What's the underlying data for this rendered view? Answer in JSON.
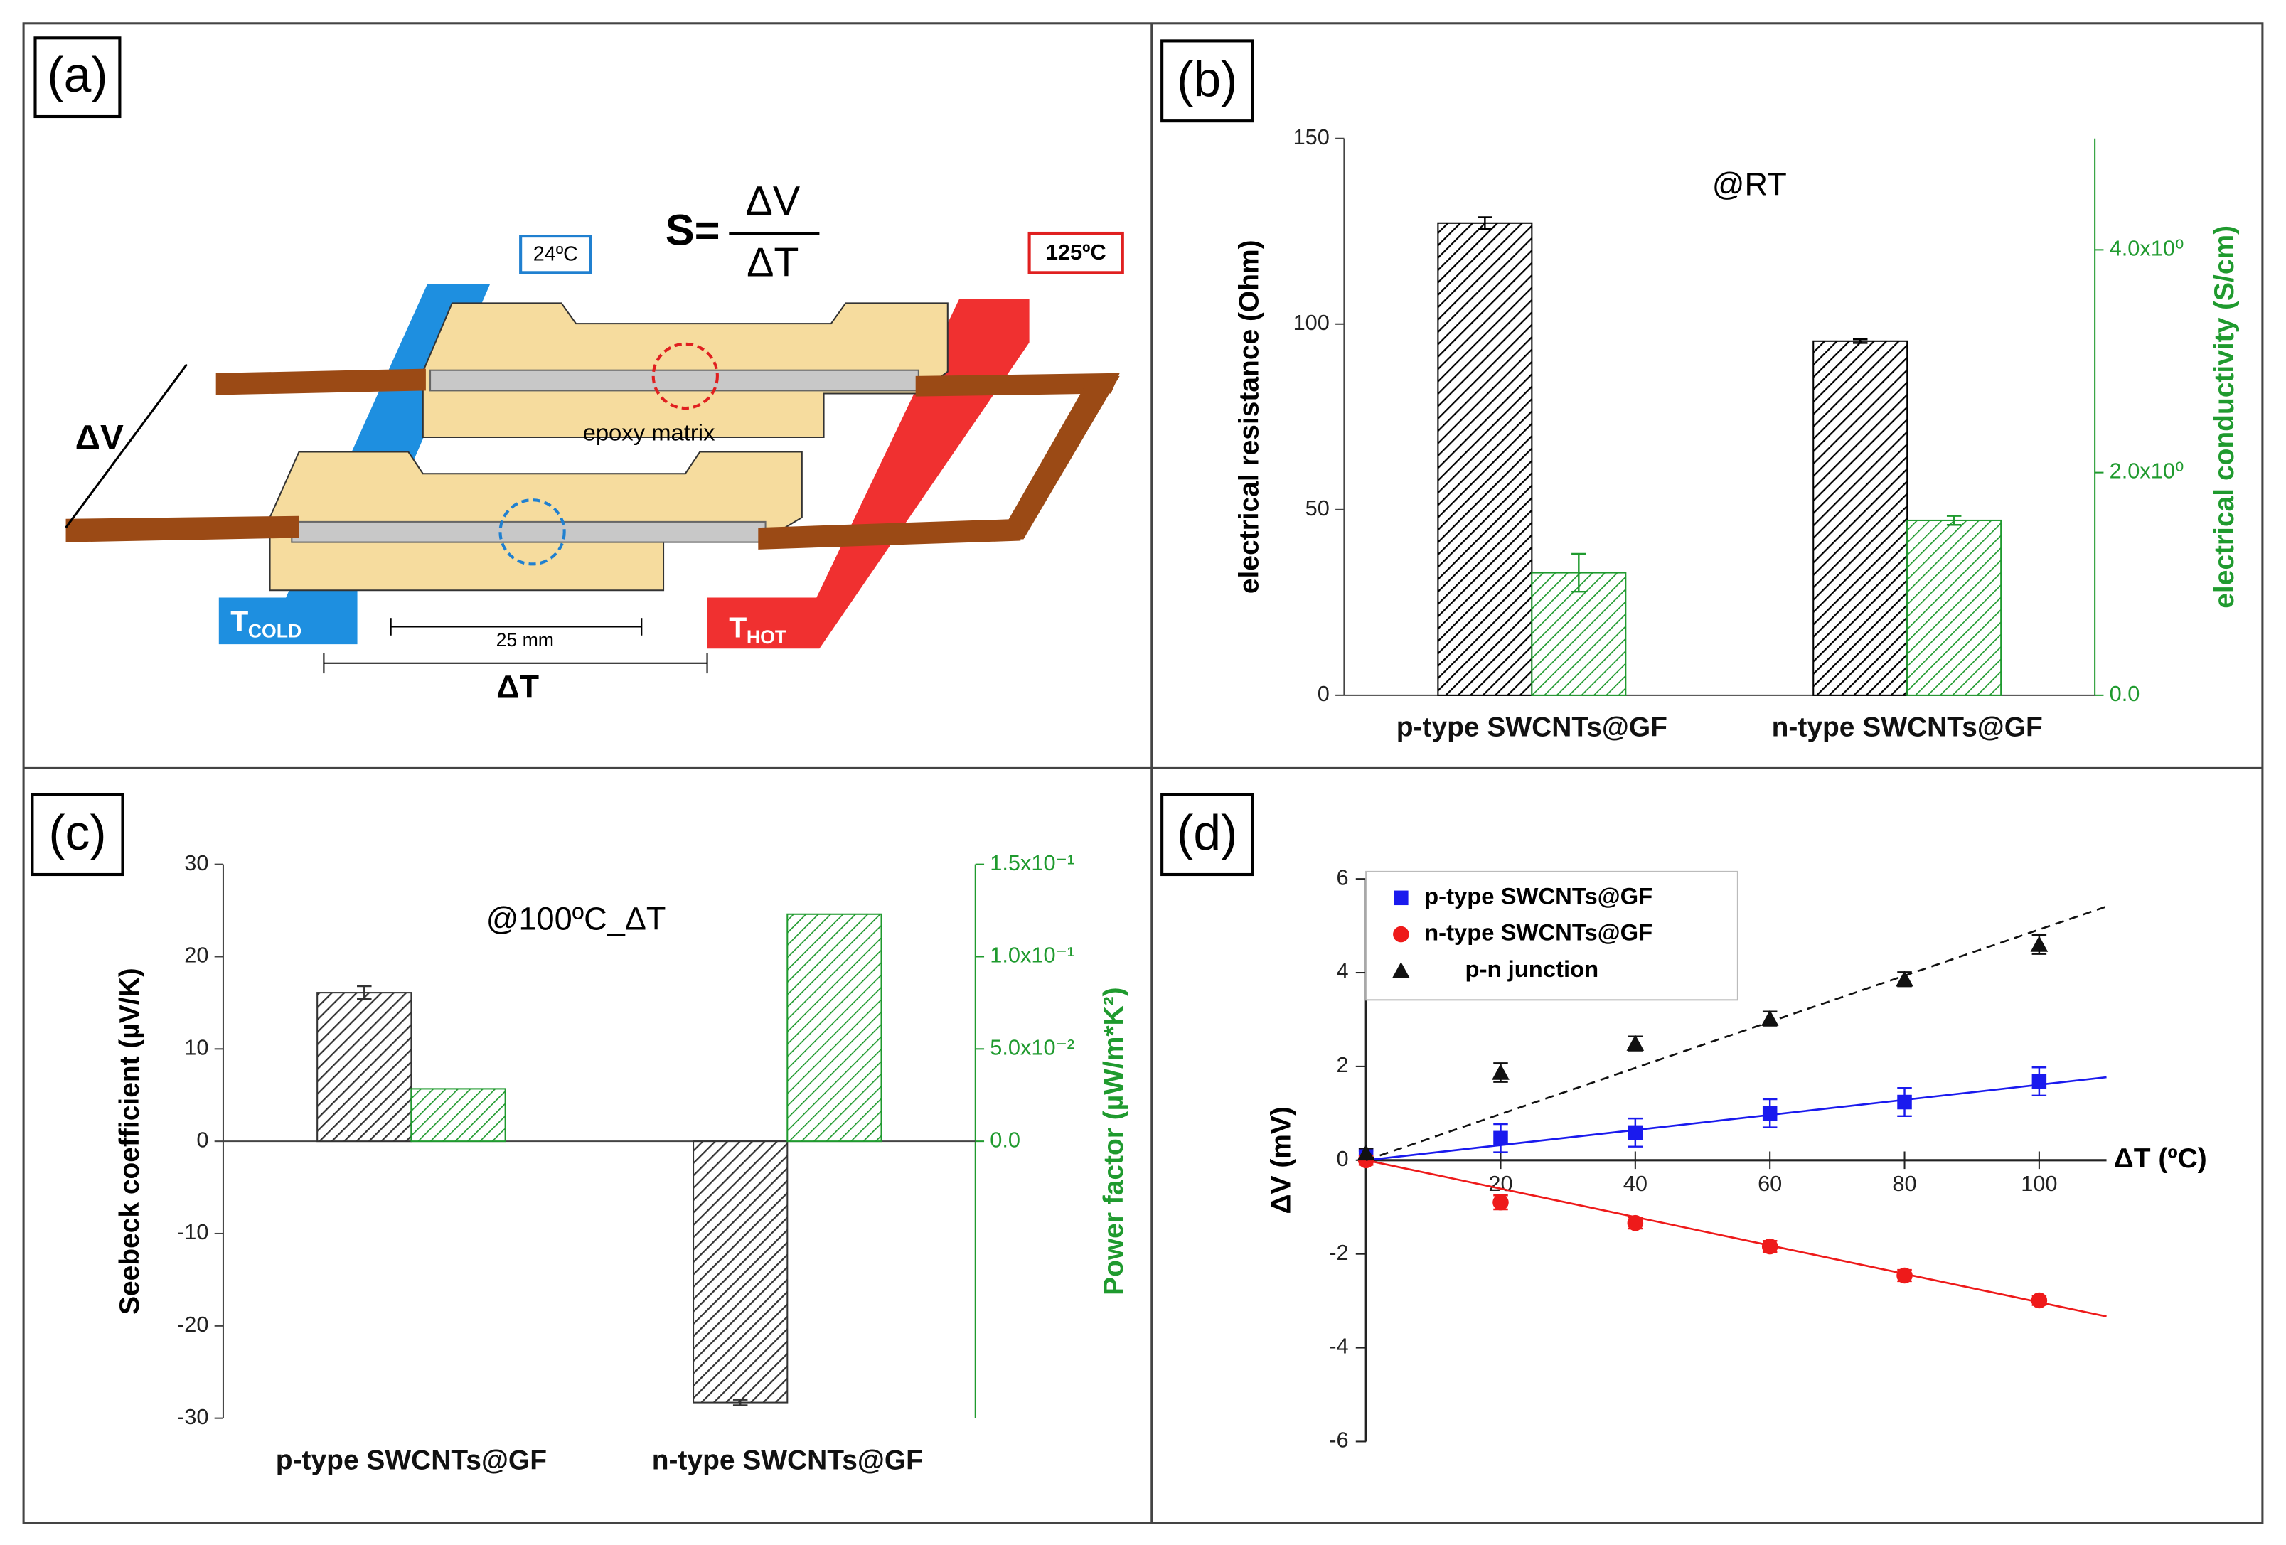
{
  "diagram": {
    "panel_label": "(a)",
    "formula": {
      "lhs": "S=",
      "numerator": "ΔV",
      "denominator": "ΔT"
    },
    "cold_temperature": "24ºC",
    "hot_temperature": "125ºC",
    "voltage_label": "ΔV",
    "matrix_label": "epoxy matrix",
    "cold_label": {
      "main": "T",
      "sub": "COLD"
    },
    "hot_label": {
      "main": "T",
      "sub": "HOT"
    },
    "length_label": "25 mm",
    "gradient_label": "ΔT"
  },
  "chart_data": [
    {
      "type": "bar",
      "panel_label": "(b)",
      "annotation": "@RT",
      "categories": [
        "p-type SWCNTs@GF",
        "n-type SWCNTs@GF"
      ],
      "series": [
        {
          "color": "#000000",
          "values": [
            127.2,
            95.4
          ],
          "errors": [
            1.6,
            0.5
          ]
        },
        {
          "color": "#1f9a2e",
          "axis": "y2",
          "values": [
            1.1,
            1.57
          ],
          "errors": [
            0.17,
            0.04
          ]
        }
      ],
      "ylabel": "electrical resistance (Ohm)",
      "y2label": "electrical conductivity (S/cm)",
      "ylim": [
        0,
        150
      ],
      "yticks": [
        0,
        50,
        100,
        150
      ],
      "y2lim": [
        0,
        5
      ],
      "y2ticks": [
        {
          "value": 0,
          "label": "0.0"
        },
        {
          "value": 2,
          "label": "2.0x10⁰"
        },
        {
          "value": 4,
          "label": "4.0x10⁰"
        }
      ],
      "y2color": "#1f9a2e"
    },
    {
      "type": "bar",
      "panel_label": "(c)",
      "annotation": "@100ºC_ΔT",
      "categories": [
        "p-type SWCNTs@GF",
        "n-type SWCNTs@GF"
      ],
      "series": [
        {
          "color": "#333333",
          "values": [
            16.1,
            -28.3
          ],
          "errors": [
            0.7,
            0.3
          ]
        },
        {
          "color": "#1f9a2e",
          "axis": "y2",
          "values": [
            0.0284,
            0.123
          ]
        }
      ],
      "ylabel": "Seebeck coefficient (µV/K)",
      "y2label": "Power factor (µW/m*K²)",
      "ylim": [
        -30,
        30
      ],
      "yticks": [
        -30,
        -20,
        -10,
        0,
        10,
        20,
        30
      ],
      "y2lim": [
        -0.15,
        0.15
      ],
      "y2ticks": [
        {
          "value": 0,
          "label": "0.0"
        },
        {
          "value": 0.05,
          "label": "5.0x10⁻²"
        },
        {
          "value": 0.1,
          "label": "1.0x10⁻¹"
        },
        {
          "value": 0.15,
          "label": "1.5x10⁻¹"
        }
      ],
      "y2color": "#1f9a2e"
    },
    {
      "type": "scatter",
      "panel_label": "(d)",
      "x": [
        0,
        20,
        40,
        60,
        80,
        100
      ],
      "series": [
        {
          "name": "p-type SWCNTs@GF",
          "color": "#1a1aee",
          "marker": "square",
          "values": [
            0.1,
            0.47,
            0.59,
            1.0,
            1.24,
            1.68
          ],
          "errors": [
            0.1,
            0.3,
            0.3,
            0.3,
            0.3,
            0.3
          ],
          "fit_slope": 0.0161
        },
        {
          "name": "n-type SWCNTs@GF",
          "color": "#ee1a1a",
          "marker": "circle",
          "values": [
            0,
            -0.9,
            -1.34,
            -1.84,
            -2.46,
            -2.99
          ],
          "errors": [
            0.1,
            0.15,
            0.12,
            0.12,
            0.12,
            0.1
          ],
          "fit_slope": -0.0303
        },
        {
          "name": "p-n junction",
          "color": "#111111",
          "marker": "triangle",
          "values": [
            0.15,
            1.87,
            2.49,
            3.02,
            3.86,
            4.6
          ],
          "errors": [
            0.1,
            0.2,
            0.15,
            0.15,
            0.15,
            0.2
          ],
          "fit_slope": 0.0492,
          "dashed": true
        }
      ],
      "xlabel": "ΔT (ºC)",
      "ylabel": "ΔV (mV)",
      "xlim": [
        0,
        110
      ],
      "ylim": [
        -6,
        6
      ],
      "xticks": [
        20,
        40,
        60,
        80,
        100
      ],
      "yticks": [
        -6,
        -4,
        -2,
        0,
        2,
        4,
        6
      ],
      "legend": "upper left"
    }
  ]
}
